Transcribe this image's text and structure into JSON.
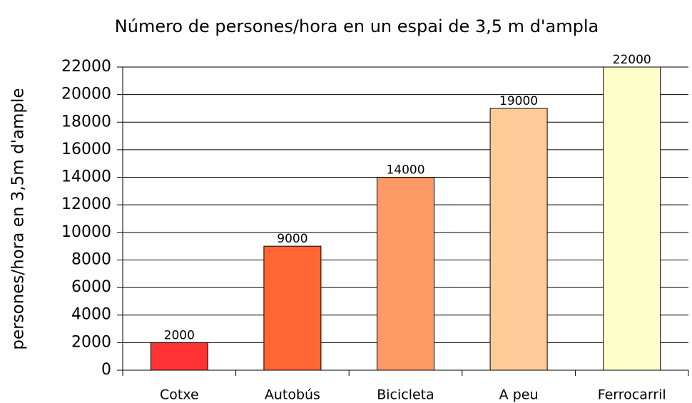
{
  "chart_data": {
    "type": "bar",
    "title": "Número de persones/hora en un espai de 3,5 m d'ampla",
    "y_label": "persones/hora en 3,5m d'ample",
    "categories": [
      "Cotxe",
      "Autobús",
      "Bicicleta",
      "A peu",
      "Ferrocarril"
    ],
    "values": [
      2000,
      9000,
      14000,
      19000,
      22000
    ],
    "colors": [
      "#ff3333",
      "#ff6633",
      "#ff9966",
      "#ffcc99",
      "#ffffcc"
    ],
    "ylim": [
      0,
      22000
    ],
    "yticks": [
      0,
      2000,
      4000,
      6000,
      8000,
      10000,
      12000,
      14000,
      16000,
      18000,
      20000,
      22000
    ],
    "grid": true
  }
}
